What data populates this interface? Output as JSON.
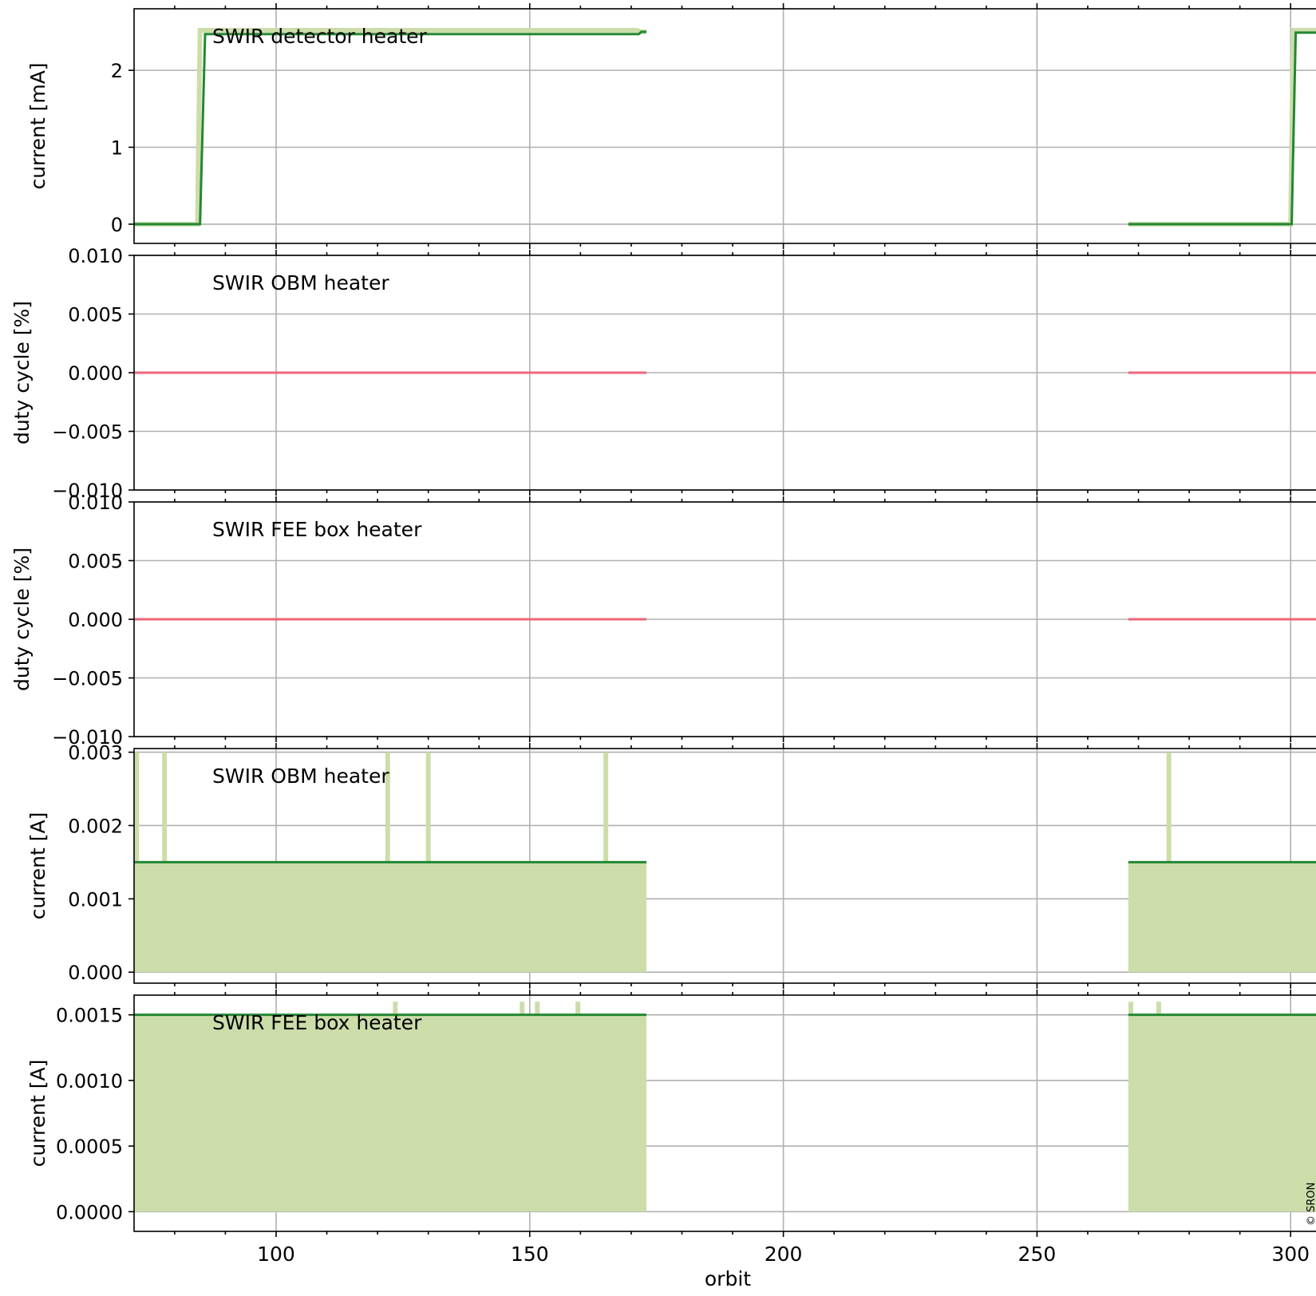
{
  "xlabel": "orbit",
  "copyright": "© SRON",
  "xlim": [
    72,
    305
  ],
  "xticks": [
    100,
    150,
    200,
    250,
    300
  ],
  "colors": {
    "dark_green": "#228833",
    "light_green": "#CCDDAA",
    "red": "#EE6677",
    "grid": "#b0b0b0"
  },
  "chart_data": [
    {
      "type": "line",
      "title": "SWIR detector heater",
      "ylabel": "current [mA]",
      "ylim": [
        -0.25,
        2.8
      ],
      "yticks": [
        "0",
        "1",
        "2"
      ],
      "ytick_values": [
        0,
        1,
        2
      ],
      "segments": [
        {
          "x": [
            72,
            85,
            86,
            171.5,
            172,
            173
          ],
          "y": [
            0,
            0,
            2.47,
            2.47,
            2.5,
            2.5
          ],
          "min_band": {
            "x": [
              72,
              84.5,
              85,
              171,
              172,
              173
            ],
            "y": [
              0,
              0,
              2.52,
              2.52,
              2.5,
              2.5
            ]
          }
        },
        {
          "x": [
            268,
            300.2,
            301,
            305
          ],
          "y": [
            0,
            0,
            2.49,
            2.49
          ],
          "min_band": {
            "x": [
              268,
              300,
              300.5,
              305
            ],
            "y": [
              0,
              0,
              2.52,
              2.52
            ]
          }
        }
      ]
    },
    {
      "type": "line",
      "title": "SWIR OBM heater",
      "ylabel": "duty cycle [%]",
      "ylim": [
        -0.01,
        0.01
      ],
      "yticks": [
        "−0.010",
        "−0.005",
        "0.000",
        "0.005",
        "0.010"
      ],
      "ytick_values": [
        -0.01,
        -0.005,
        0,
        0.005,
        0.01
      ],
      "series_color": "red",
      "segments": [
        {
          "x": [
            72,
            173
          ],
          "y": [
            0,
            0
          ]
        },
        {
          "x": [
            268,
            305
          ],
          "y": [
            0,
            0
          ]
        }
      ]
    },
    {
      "type": "line",
      "title": "SWIR FEE box heater",
      "ylabel": "duty cycle [%]",
      "ylim": [
        -0.01,
        0.01
      ],
      "yticks": [
        "−0.010",
        "−0.005",
        "0.000",
        "0.005",
        "0.010"
      ],
      "ytick_values": [
        -0.01,
        -0.005,
        0,
        0.005,
        0.01
      ],
      "series_color": "red",
      "segments": [
        {
          "x": [
            72,
            173
          ],
          "y": [
            0,
            0
          ]
        },
        {
          "x": [
            268,
            305
          ],
          "y": [
            0,
            0
          ]
        }
      ]
    },
    {
      "type": "area",
      "title": "SWIR OBM heater",
      "ylabel": "current [A]",
      "ylim": [
        -0.00015,
        0.00305
      ],
      "yticks": [
        "0.000",
        "0.001",
        "0.002",
        "0.003"
      ],
      "ytick_values": [
        0,
        0.001,
        0.002,
        0.003
      ],
      "segments": [
        {
          "x": [
            72,
            173
          ],
          "value": 0.0015,
          "spikes": [
            72.5,
            78,
            122,
            130,
            165
          ],
          "spike_max": 0.003
        },
        {
          "x": [
            268,
            305
          ],
          "value": 0.0015,
          "spikes": [
            276
          ],
          "spike_max": 0.003
        }
      ]
    },
    {
      "type": "area",
      "title": "SWIR FEE box heater",
      "ylabel": "current [A]",
      "ylim": [
        -0.00015,
        0.00165
      ],
      "yticks": [
        "0.0000",
        "0.0005",
        "0.0010",
        "0.0015"
      ],
      "ytick_values": [
        0,
        0.0005,
        0.001,
        0.0015
      ],
      "segments": [
        {
          "x": [
            72,
            173
          ],
          "value": 0.0015,
          "spikes": [
            123.5,
            148.5,
            151.5,
            159.5
          ],
          "spike_max": 0.0016
        },
        {
          "x": [
            268,
            305
          ],
          "value": 0.0015,
          "spikes": [
            268.5,
            274
          ],
          "spike_max": 0.0016
        }
      ]
    }
  ]
}
